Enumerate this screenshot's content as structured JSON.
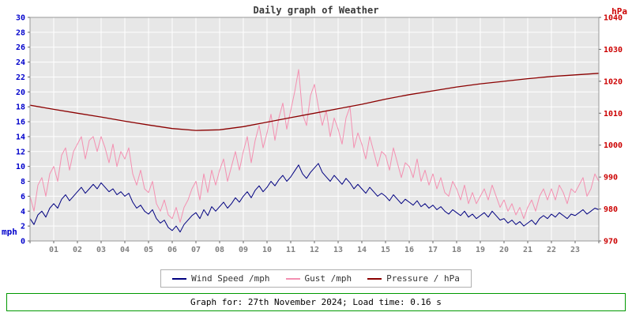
{
  "chart_data": {
    "type": "line",
    "title": "Daily graph of Weather",
    "left_axis": {
      "label": "mph",
      "min": 0,
      "max": 30,
      "step": 2,
      "color": "#0000cc"
    },
    "right_axis": {
      "label": "hPa",
      "min": 970,
      "max": 1040,
      "step": 10,
      "color": "#cc0000"
    },
    "x_axis": {
      "hours": 24,
      "tick_labels": [
        "01",
        "02",
        "03",
        "04",
        "05",
        "06",
        "07",
        "08",
        "09",
        "10",
        "11",
        "12",
        "13",
        "14",
        "15",
        "16",
        "17",
        "18",
        "19",
        "20",
        "21",
        "22",
        "23"
      ],
      "label_color": "#808080"
    },
    "grid": true,
    "legend_position": "bottom",
    "plot_background": "#e7e7e7",
    "grid_color": "#ffffff",
    "series": [
      {
        "name": "Wind Speed /mph",
        "axis": "left",
        "color": "#000080",
        "width": 1,
        "x_step_minutes": 10,
        "values": [
          3.0,
          2.2,
          3.5,
          4.0,
          3.2,
          4.4,
          5.0,
          4.4,
          5.6,
          6.2,
          5.4,
          6.0,
          6.6,
          7.2,
          6.4,
          7.0,
          7.6,
          7.0,
          7.8,
          7.2,
          6.6,
          7.0,
          6.2,
          6.6,
          6.0,
          6.4,
          5.2,
          4.4,
          4.8,
          4.0,
          3.6,
          4.2,
          3.0,
          2.4,
          2.8,
          1.8,
          1.4,
          2.0,
          1.2,
          2.2,
          2.8,
          3.4,
          3.8,
          3.0,
          4.2,
          3.4,
          4.6,
          4.0,
          4.6,
          5.2,
          4.4,
          5.0,
          5.8,
          5.2,
          6.0,
          6.6,
          5.8,
          6.8,
          7.4,
          6.6,
          7.2,
          8.0,
          7.4,
          8.2,
          8.8,
          8.0,
          8.6,
          9.4,
          10.2,
          9.0,
          8.4,
          9.2,
          9.8,
          10.4,
          9.2,
          8.6,
          8.0,
          8.8,
          8.2,
          7.6,
          8.4,
          7.8,
          7.0,
          7.6,
          7.0,
          6.4,
          7.2,
          6.6,
          6.0,
          6.4,
          6.0,
          5.4,
          6.2,
          5.6,
          5.0,
          5.6,
          5.2,
          4.8,
          5.4,
          4.6,
          5.0,
          4.4,
          4.8,
          4.2,
          4.6,
          4.0,
          3.6,
          4.2,
          3.8,
          3.4,
          4.0,
          3.2,
          3.6,
          3.0,
          3.4,
          3.8,
          3.2,
          4.0,
          3.4,
          2.8,
          3.0,
          2.4,
          2.8,
          2.2,
          2.6,
          2.0,
          2.4,
          2.8,
          2.2,
          3.0,
          3.4,
          3.0,
          3.6,
          3.2,
          3.8,
          3.4,
          3.0,
          3.6,
          3.4,
          3.8,
          4.2,
          3.6,
          4.0,
          4.4,
          4.2
        ]
      },
      {
        "name": "Gust /mph",
        "axis": "left",
        "color": "#f490b1",
        "width": 1,
        "x_step_minutes": 10,
        "values": [
          6.0,
          4.0,
          7.5,
          8.5,
          6.0,
          9.0,
          10.0,
          8.0,
          11.5,
          12.5,
          9.5,
          12.0,
          13.0,
          14.0,
          11.0,
          13.5,
          14.0,
          12.0,
          14.0,
          12.5,
          10.5,
          13.0,
          10.0,
          12.0,
          11.0,
          12.5,
          9.0,
          7.5,
          9.5,
          7.0,
          6.5,
          8.0,
          5.0,
          4.0,
          5.5,
          3.5,
          3.0,
          4.5,
          2.5,
          4.5,
          5.5,
          7.0,
          8.0,
          5.5,
          9.0,
          6.5,
          9.5,
          7.5,
          9.5,
          11.0,
          8.0,
          10.0,
          12.0,
          9.5,
          12.0,
          14.0,
          10.5,
          13.5,
          15.5,
          12.5,
          14.5,
          17.0,
          13.5,
          16.5,
          18.5,
          15.0,
          17.5,
          20.0,
          23.0,
          17.0,
          15.5,
          19.5,
          21.0,
          18.0,
          15.5,
          17.5,
          14.0,
          16.5,
          15.0,
          13.0,
          16.5,
          18.0,
          12.5,
          14.5,
          13.0,
          11.0,
          14.0,
          12.0,
          10.0,
          12.0,
          11.5,
          9.5,
          12.5,
          10.5,
          8.5,
          10.5,
          10.0,
          8.5,
          11.0,
          8.0,
          9.5,
          7.5,
          9.0,
          7.0,
          8.5,
          6.5,
          6.0,
          8.0,
          7.0,
          5.5,
          7.5,
          5.0,
          6.5,
          5.0,
          6.0,
          7.0,
          5.5,
          7.5,
          6.0,
          4.5,
          5.5,
          4.0,
          5.0,
          3.5,
          4.5,
          3.0,
          4.5,
          5.5,
          4.0,
          6.0,
          7.0,
          5.5,
          7.0,
          5.5,
          7.5,
          6.5,
          5.0,
          7.0,
          6.5,
          7.5,
          8.5,
          6.0,
          7.0,
          9.0,
          8.0
        ]
      },
      {
        "name": "Pressure / hPa",
        "axis": "right",
        "color": "#8b0000",
        "width": 1.3,
        "x_step_minutes": 60,
        "values": [
          1012.5,
          1011.2,
          1010.0,
          1008.8,
          1007.5,
          1006.3,
          1005.2,
          1004.6,
          1004.8,
          1005.8,
          1007.2,
          1008.6,
          1010.0,
          1011.4,
          1012.8,
          1014.4,
          1015.8,
          1017.0,
          1018.2,
          1019.2,
          1020.0,
          1020.8,
          1021.5,
          1022.0,
          1022.5
        ]
      }
    ]
  },
  "legend": {
    "wind_label": "Wind Speed /mph",
    "gust_label": "Gust /mph",
    "pressure_label": "Pressure / hPa"
  },
  "footer": {
    "text": "Graph for: 27th November 2024; Load time: 0.16 s"
  }
}
